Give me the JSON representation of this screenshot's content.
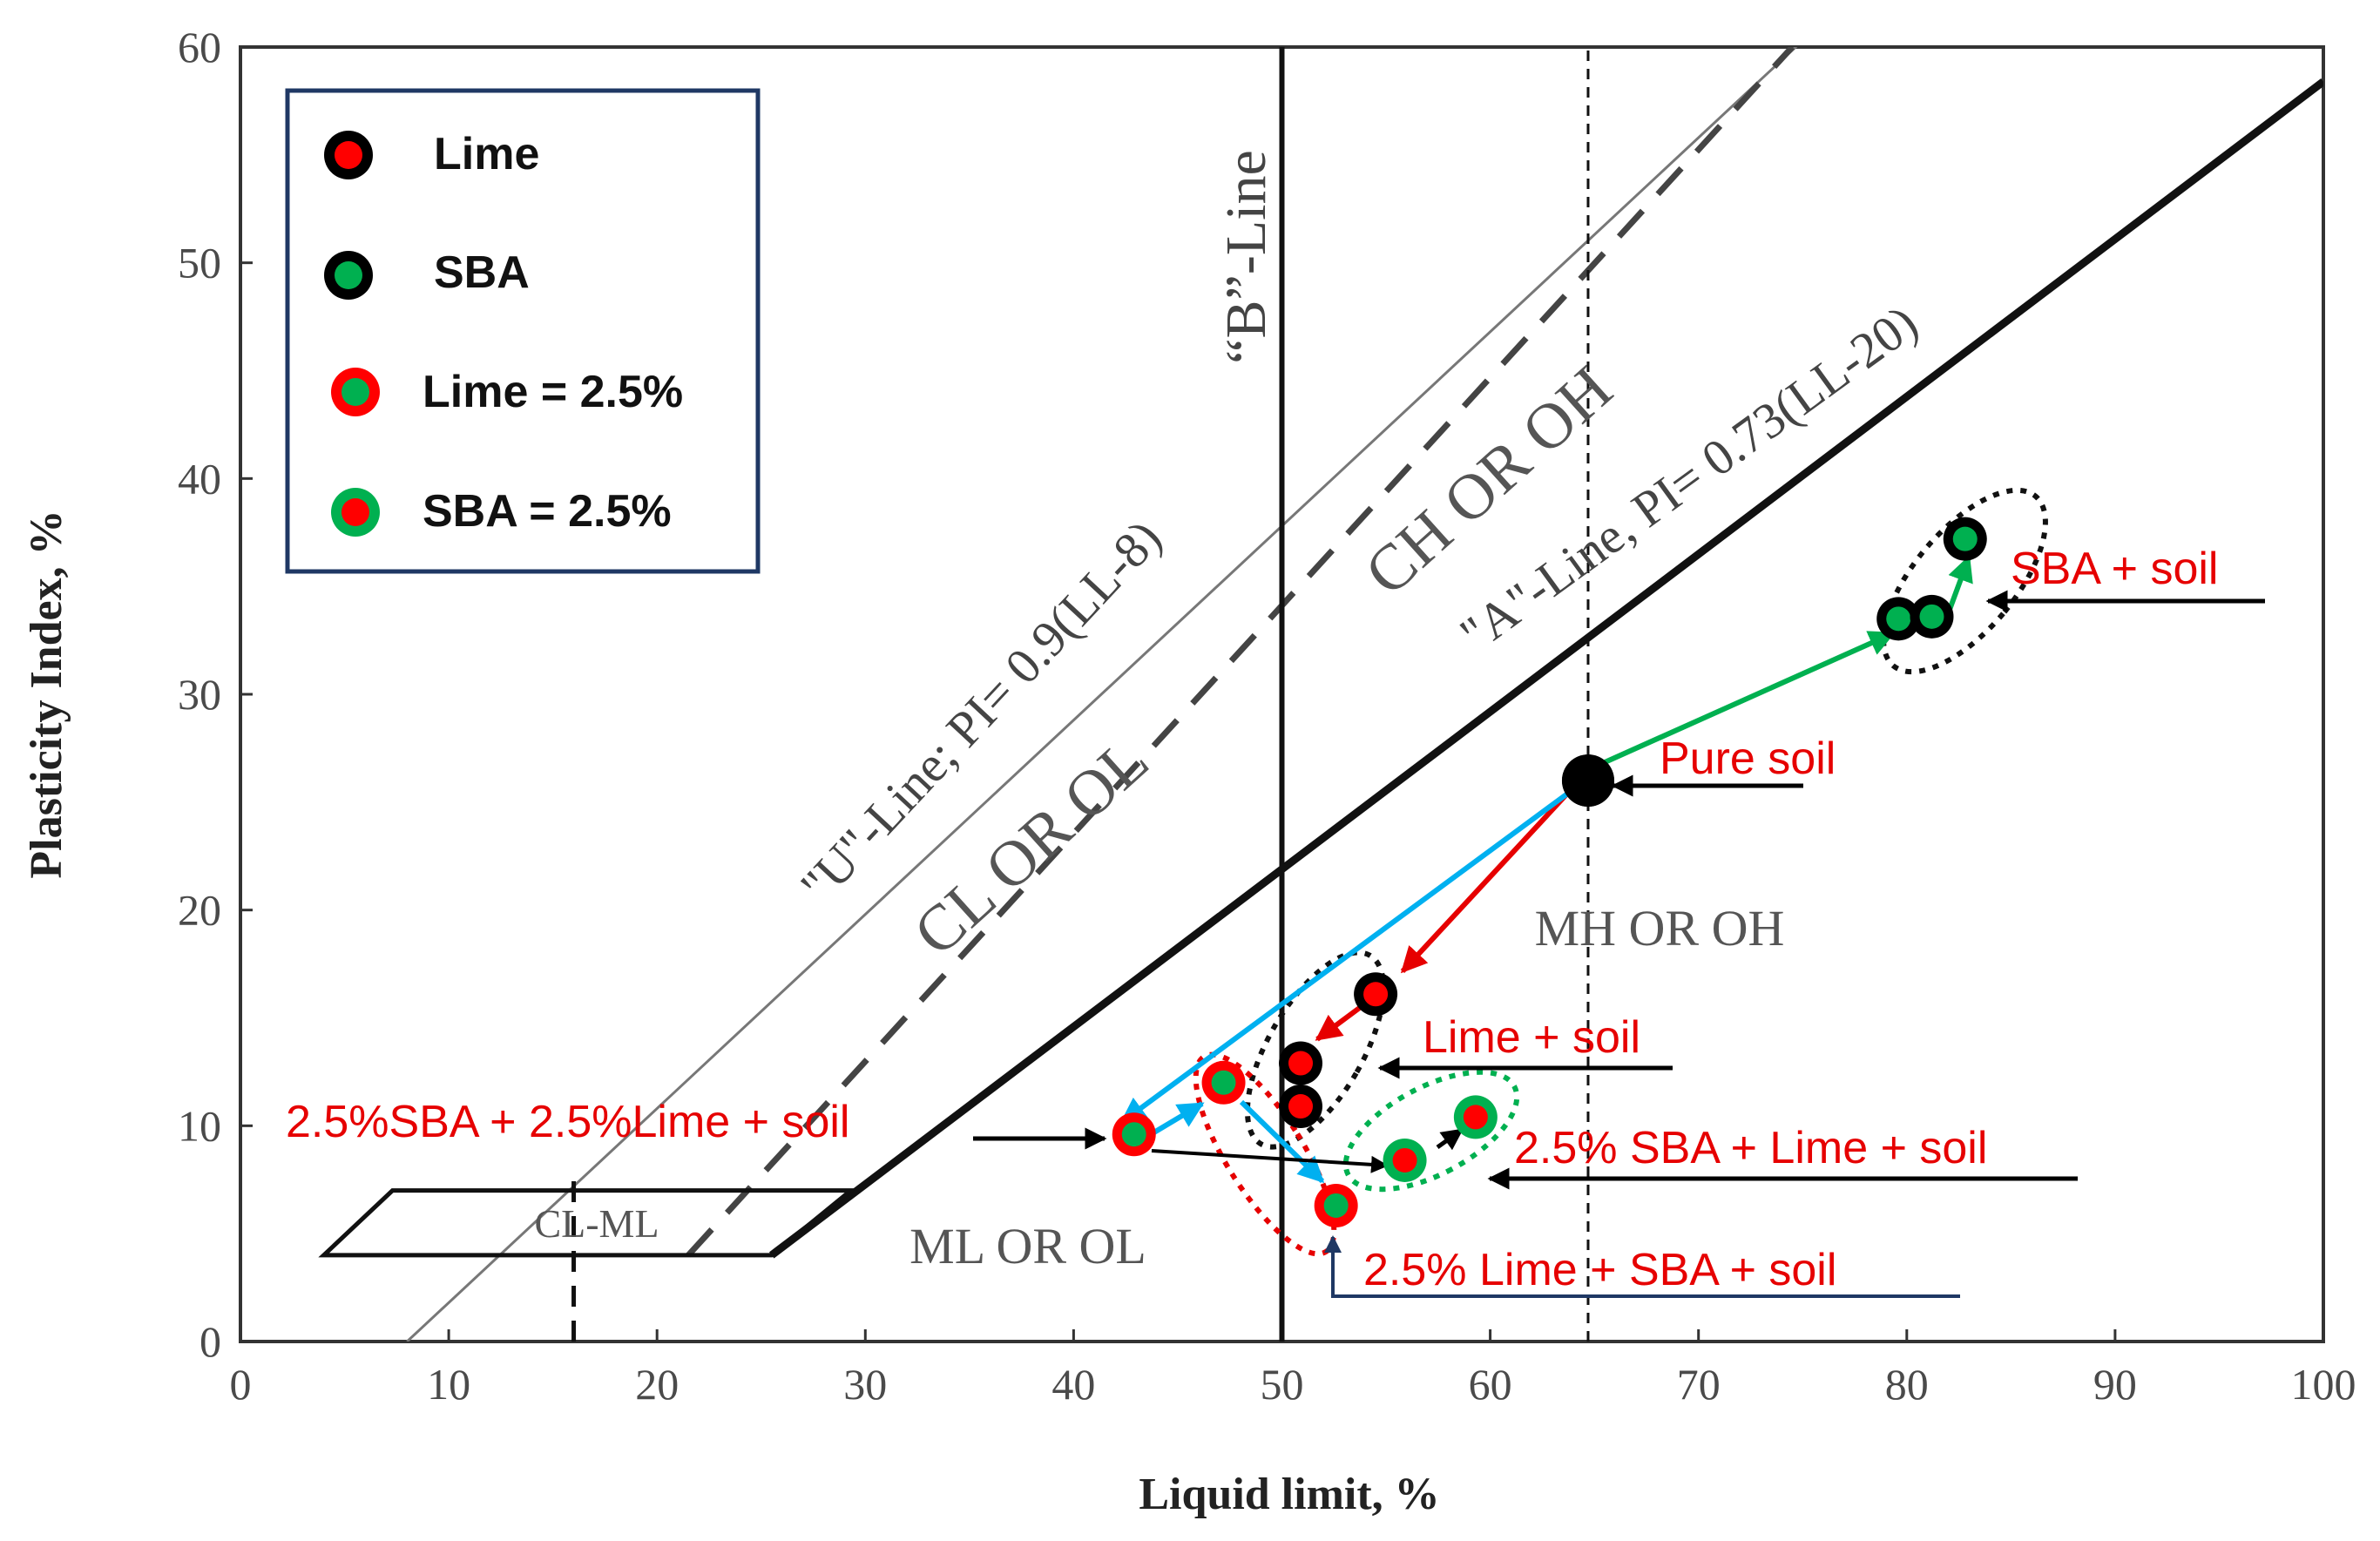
{
  "chart_data": {
    "type": "scatter",
    "title": "",
    "xlabel": "Liquid limit, %",
    "ylabel": "Plasticity Index, %",
    "xlim": [
      0,
      100
    ],
    "ylim": [
      0,
      60
    ],
    "x_ticks": [
      0,
      10,
      20,
      30,
      40,
      50,
      60,
      70,
      80,
      90,
      100
    ],
    "y_ticks": [
      0,
      10,
      20,
      30,
      40,
      50,
      60
    ],
    "grid": false,
    "legend_position": "top-left",
    "legend": [
      {
        "label": "Lime",
        "fill": "#ff0000",
        "ring": "#000000"
      },
      {
        "label": "SBA",
        "fill": "#00b050",
        "ring": "#000000"
      },
      {
        "label": "Lime = 2.5%",
        "fill": "#00b050",
        "ring": "#ff0000"
      },
      {
        "label": "SBA = 2.5%",
        "fill": "#ff0000",
        "ring": "#00b050"
      }
    ],
    "reference_lines": {
      "u_line": {
        "label": "\"U\"-Line; PI= 0.9(LL-8)",
        "slope": 0.9,
        "offset": 8
      },
      "a_line": {
        "label": "\"A\"-Line, PI= 0.73(LL-20)",
        "slope": 0.73,
        "offset": 20
      },
      "b_line": {
        "label": "“B”-Line",
        "x": 50
      },
      "dashed_x": 64.7,
      "cl_ml_dashed_x": 16
    },
    "regions": {
      "cl_ol": "CL OR OL",
      "ch_oh": "CH OR OH",
      "mh_oh": "MH OR OH",
      "ml_ol": "ML OR OL",
      "cl_ml": "CL-ML"
    },
    "series": [
      {
        "name": "Pure soil",
        "style": "pure",
        "points": [
          [
            64.7,
            26.0
          ]
        ]
      },
      {
        "name": "Lime",
        "style": "lime",
        "points": [
          [
            54.5,
            16.1
          ],
          [
            50.9,
            12.9
          ],
          [
            50.9,
            10.9
          ]
        ]
      },
      {
        "name": "SBA",
        "style": "sba",
        "points": [
          [
            79.6,
            33.5
          ],
          [
            81.2,
            33.6
          ],
          [
            82.8,
            37.2
          ]
        ]
      },
      {
        "name": "Lime = 2.5%",
        "style": "lime25",
        "points": [
          [
            42.9,
            9.6
          ],
          [
            47.2,
            12.0
          ],
          [
            52.6,
            6.3
          ]
        ]
      },
      {
        "name": "SBA = 2.5%",
        "style": "sba25",
        "points": [
          [
            55.9,
            8.4
          ],
          [
            59.3,
            10.4
          ]
        ]
      }
    ],
    "annotations": [
      {
        "text": "SBA + soil"
      },
      {
        "text": "Pure soil"
      },
      {
        "text": "Lime + soil"
      },
      {
        "text": "2.5%SBA + 2.5%Lime + soil"
      },
      {
        "text": "2.5% SBA + Lime + soil"
      },
      {
        "text": "2.5% Lime + SBA + soil"
      }
    ]
  }
}
